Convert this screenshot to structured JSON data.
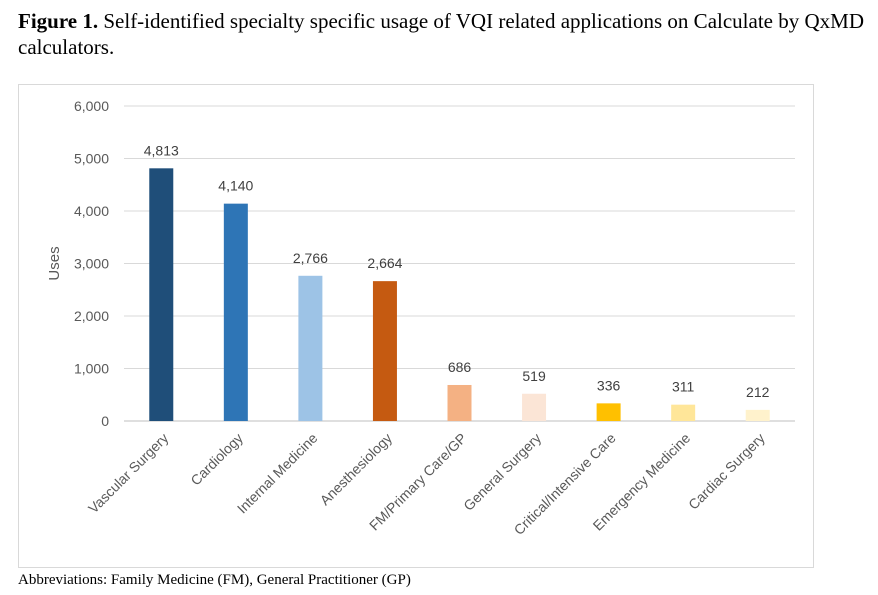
{
  "figure": {
    "label": "Figure 1.",
    "title": " Self-identified specialty specific usage of VQI related applications on Calculate by QxMD calculators.",
    "footnote": "Abbreviations: Family Medicine (FM), General Practitioner (GP)"
  },
  "chart_data": {
    "type": "bar",
    "categories": [
      "Vascular Surgery",
      "Cardiology",
      "Internal Medicine",
      "Anesthesiology",
      "FM/Primary Care/GP",
      "General Surgery",
      "Critical/Intensive Care",
      "Emergency Medicine",
      "Cardiac Surgery"
    ],
    "values": [
      4813,
      4140,
      2766,
      2664,
      686,
      519,
      336,
      311,
      212
    ],
    "value_labels": [
      "4,813",
      "4,140",
      "2,766",
      "2,664",
      "686",
      "519",
      "336",
      "311",
      "212"
    ],
    "colors": [
      "#1f4e79",
      "#2e75b6",
      "#9dc3e6",
      "#c55a11",
      "#f4b183",
      "#fbe5d6",
      "#ffc000",
      "#ffe699",
      "#fff2cc"
    ],
    "ylabel": "Uses",
    "xlabel": "",
    "ylim": [
      0,
      6000
    ],
    "yticks": [
      0,
      1000,
      2000,
      3000,
      4000,
      5000,
      6000
    ],
    "ytick_labels": [
      "0",
      "1,000",
      "2,000",
      "3,000",
      "4,000",
      "5,000",
      "6,000"
    ],
    "grid": true,
    "legend": "none"
  }
}
